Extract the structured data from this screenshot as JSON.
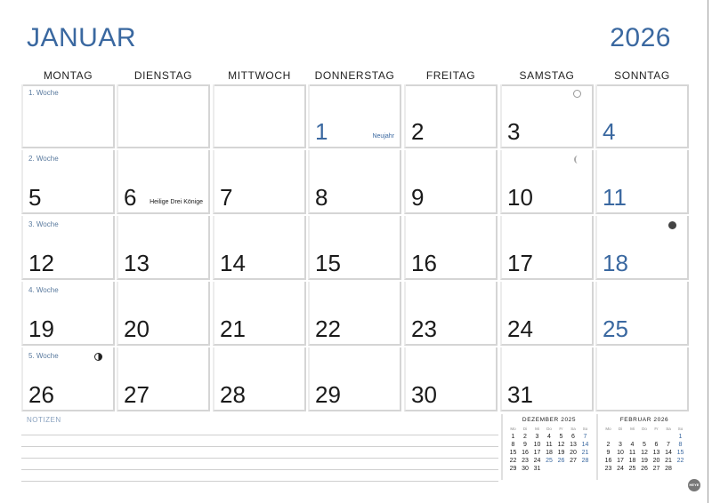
{
  "header": {
    "month": "JANUAR",
    "year": "2026"
  },
  "weekdays": [
    "MONTAG",
    "DIENSTAG",
    "MITTWOCH",
    "DONNERSTAG",
    "FREITAG",
    "SAMSTAG",
    "SONNTAG"
  ],
  "accent": "#3a68a0",
  "weeks": [
    {
      "label": "1. Woche",
      "days": [
        null,
        null,
        null,
        {
          "d": "1",
          "blue": true,
          "holiday": "Neujahr"
        },
        {
          "d": "2"
        },
        {
          "d": "3",
          "moon": "full"
        },
        {
          "d": "4",
          "blue": true
        }
      ]
    },
    {
      "label": "2. Woche",
      "days": [
        {
          "d": "5"
        },
        {
          "d": "6",
          "holiday": "Heilige Drei Könige"
        },
        {
          "d": "7"
        },
        {
          "d": "8"
        },
        {
          "d": "9"
        },
        {
          "d": "10",
          "moon": "lastq"
        },
        {
          "d": "11",
          "blue": true
        }
      ]
    },
    {
      "label": "3. Woche",
      "days": [
        {
          "d": "12"
        },
        {
          "d": "13"
        },
        {
          "d": "14"
        },
        {
          "d": "15"
        },
        {
          "d": "16"
        },
        {
          "d": "17"
        },
        {
          "d": "18",
          "blue": true,
          "moon": "new"
        }
      ]
    },
    {
      "label": "4. Woche",
      "days": [
        {
          "d": "19"
        },
        {
          "d": "20"
        },
        {
          "d": "21"
        },
        {
          "d": "22"
        },
        {
          "d": "23"
        },
        {
          "d": "24"
        },
        {
          "d": "25",
          "blue": true
        }
      ]
    },
    {
      "label": "5. Woche",
      "days": [
        {
          "d": "26",
          "moon": "firstq"
        },
        {
          "d": "27"
        },
        {
          "d": "28"
        },
        {
          "d": "29"
        },
        {
          "d": "30"
        },
        {
          "d": "31"
        },
        null
      ]
    }
  ],
  "notes": {
    "label": "NOTIZEN"
  },
  "mini_headers": [
    "Mo",
    "Di",
    "Mi",
    "Do",
    "Fr",
    "Sa",
    "So"
  ],
  "mini": [
    {
      "title": "DEZEMBER 2025",
      "offset": 0,
      "days": 31,
      "blue": [
        7,
        14,
        21,
        25,
        26,
        28
      ]
    },
    {
      "title": "FEBRUAR 2026",
      "offset": 6,
      "days": 28,
      "blue": [
        1,
        8,
        15,
        22
      ]
    }
  ],
  "logo": "HEYE"
}
